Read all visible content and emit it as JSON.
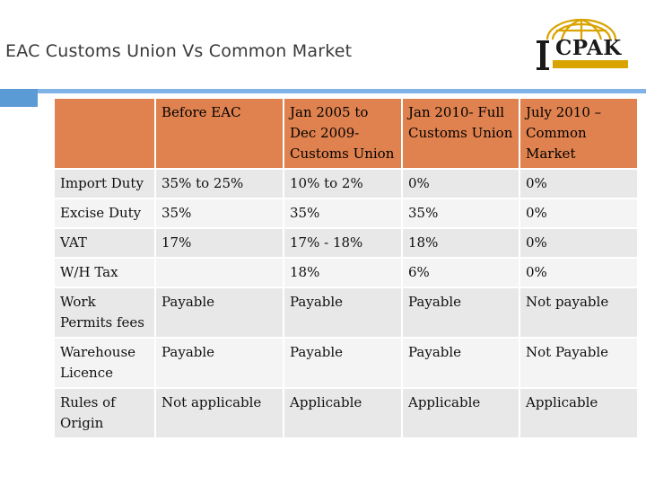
{
  "slide": {
    "title": "EAC Customs Union Vs Common Market"
  },
  "logo": {
    "name": "CPAK",
    "emblem": "globe-emblem-icon"
  },
  "colors": {
    "header_fill": "#e0824f",
    "row_odd": "#e8e8e8",
    "row_even": "#f4f4f4",
    "accent_blue": "#5b9bd5",
    "logo_gold": "#d9a300"
  },
  "table": {
    "headers": [
      "",
      "Before EAC",
      "Jan 2005 to Dec 2009- Customs Union",
      "Jan 2010- Full Customs Union",
      "July 2010 – Common Market"
    ],
    "rows": [
      [
        "Import Duty",
        "35% to 25%",
        "10% to 2%",
        "0%",
        "0%"
      ],
      [
        "Excise Duty",
        "35%",
        "35%",
        "35%",
        "0%"
      ],
      [
        "VAT",
        "17%",
        "17% - 18%",
        "18%",
        "0%"
      ],
      [
        "W/H Tax",
        "",
        "18%",
        "6%",
        "0%"
      ],
      [
        "Work Permits fees",
        "Payable",
        "Payable",
        "Payable",
        "Not payable"
      ],
      [
        "Warehouse Licence",
        "Payable",
        "Payable",
        "Payable",
        "Not Payable"
      ],
      [
        "Rules of Origin",
        "Not applicable",
        "Applicable",
        "Applicable",
        "Applicable"
      ]
    ]
  }
}
